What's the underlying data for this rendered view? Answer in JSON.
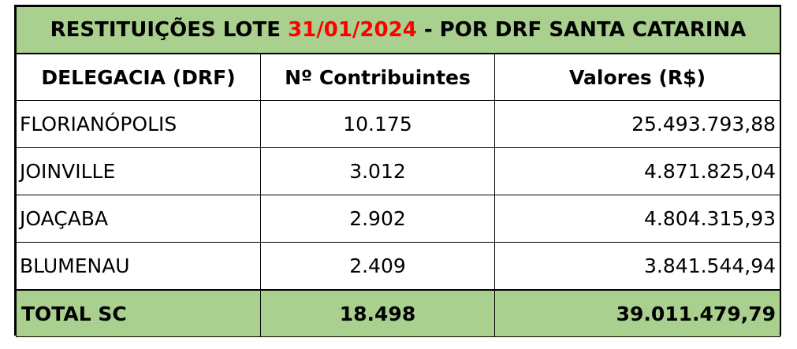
{
  "title": {
    "prefix": "RESTITUIÇÕES LOTE ",
    "date": "31/01/2024",
    "suffix": " - POR DRF SANTA CATARINA"
  },
  "colors": {
    "header_green": "#a9d08e",
    "date_red": "#ff0000"
  },
  "columns": [
    "DELEGACIA (DRF)",
    "Nº Contribuintes",
    "Valores (R$)"
  ],
  "rows": [
    {
      "delegacia": "FLORIANÓPOLIS",
      "contribuintes": "10.175",
      "valores": "25.493.793,88"
    },
    {
      "delegacia": "JOINVILLE",
      "contribuintes": "3.012",
      "valores": "4.871.825,04"
    },
    {
      "delegacia": "JOAÇABA",
      "contribuintes": "2.902",
      "valores": "4.804.315,93"
    },
    {
      "delegacia": "BLUMENAU",
      "contribuintes": "2.409",
      "valores": "3.841.544,94"
    }
  ],
  "total": {
    "label": "TOTAL SC",
    "contribuintes": "18.498",
    "valores": "39.011.479,79"
  }
}
